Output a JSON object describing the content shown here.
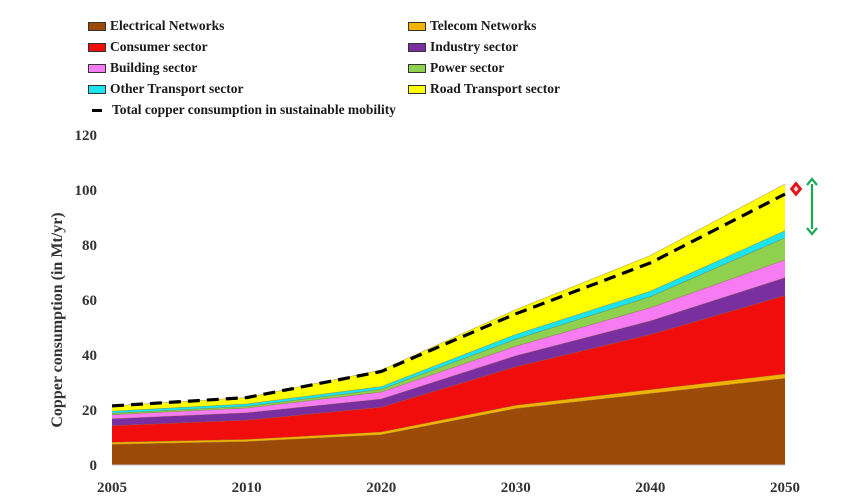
{
  "chart_data": {
    "type": "area",
    "title": "",
    "xlabel": "",
    "ylabel": "Copper consumption (in Mt/yr)",
    "x": [
      2005,
      2010,
      2020,
      2030,
      2040,
      2050
    ],
    "x_tick_labels": [
      "2005",
      "2010",
      "2020",
      "2030",
      "2040",
      "2050"
    ],
    "ylim": [
      0,
      120
    ],
    "y_ticks": [
      0,
      20,
      40,
      60,
      80,
      100,
      120
    ],
    "stacked": true,
    "grid": false,
    "legend_position": "top",
    "series": [
      {
        "name": "Electrical Networks",
        "color": "#9B4A08",
        "values": [
          7.5,
          8.5,
          11,
          20.5,
          26,
          31.5
        ]
      },
      {
        "name": "Telecom Networks",
        "color": "#F2B300",
        "values": [
          0.8,
          0.8,
          1,
          1.2,
          1.4,
          1.6
        ]
      },
      {
        "name": "Consumer sector",
        "color": "#F20D0D",
        "values": [
          6,
          7,
          9,
          14,
          20,
          28.5
        ]
      },
      {
        "name": "Industry sector",
        "color": "#7A2FA0",
        "values": [
          2.5,
          2.7,
          3,
          4,
          5,
          6.5
        ]
      },
      {
        "name": "Building sector",
        "color": "#F77BF2",
        "values": [
          1.5,
          1.7,
          2.5,
          3.5,
          4.8,
          6.5
        ]
      },
      {
        "name": "Power sector",
        "color": "#8FD14F",
        "values": [
          0.5,
          0.6,
          1,
          2.5,
          4,
          8
        ]
      },
      {
        "name": "Other Transport sector",
        "color": "#1BE4EE",
        "values": [
          0.8,
          0.9,
          1,
          1.8,
          2,
          2.6
        ]
      },
      {
        "name": "Road Transport sector",
        "color": "#FFFF00",
        "values": [
          1.9,
          2.3,
          6,
          9,
          13,
          17
        ]
      }
    ],
    "total_line": {
      "name": "Total copper consumption in sustainable mobility",
      "style": "dashed",
      "color": "#000000",
      "values": [
        21.5,
        24.5,
        34,
        55,
        73.5,
        98.5
      ]
    },
    "annotations": [
      {
        "type": "double-arrow",
        "color": "#E8141B",
        "from_y": 98.5,
        "to_y": 102.3
      },
      {
        "type": "double-arrow",
        "color": "#1AAA55",
        "from_y": 84,
        "to_y": 104
      }
    ]
  },
  "legend": {
    "items": [
      {
        "label": "Electrical Networks",
        "color": "#9B4A08"
      },
      {
        "label": "Telecom Networks",
        "color": "#F2B300"
      },
      {
        "label": "Consumer sector",
        "color": "#F20D0D"
      },
      {
        "label": "Industry sector",
        "color": "#7A2FA0"
      },
      {
        "label": "Building sector",
        "color": "#F77BF2"
      },
      {
        "label": "Power sector",
        "color": "#8FD14F"
      },
      {
        "label": "Other Transport sector",
        "color": "#1BE4EE"
      },
      {
        "label": "Road Transport sector",
        "color": "#FFFF00"
      }
    ],
    "line_label": "Total copper consumption in sustainable mobility"
  }
}
